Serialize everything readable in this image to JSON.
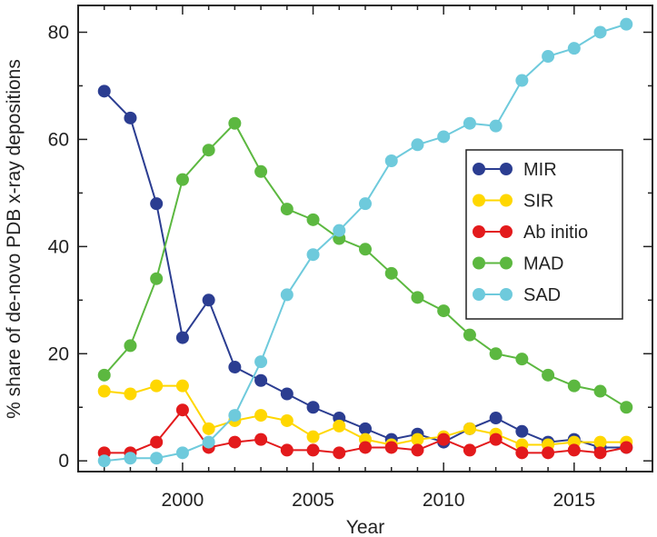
{
  "chart_data": {
    "type": "line",
    "xlabel": "Year",
    "ylabel": "% share of de-novo PDB x-ray depositions",
    "xlim": [
      1996,
      2018
    ],
    "ylim": [
      -2,
      85
    ],
    "xticks": [
      2000,
      2005,
      2010,
      2015
    ],
    "yticks": [
      0,
      20,
      40,
      60,
      80
    ],
    "legend_position": "right",
    "x": [
      1997,
      1998,
      1999,
      2000,
      2001,
      2002,
      2003,
      2004,
      2005,
      2006,
      2007,
      2008,
      2009,
      2010,
      2011,
      2012,
      2013,
      2014,
      2015,
      2016,
      2017
    ],
    "series": [
      {
        "name": "MIR",
        "color": "#2b3d91",
        "values": [
          69,
          64,
          48,
          23,
          30,
          17.5,
          15,
          12.5,
          10,
          8,
          6,
          4,
          5,
          3.5,
          6,
          8,
          5.5,
          3.5,
          4,
          2.5,
          2.5
        ]
      },
      {
        "name": "SIR",
        "color": "#ffd700",
        "values": [
          13,
          12.5,
          14,
          14,
          6,
          7.5,
          8.5,
          7.5,
          4.5,
          6.5,
          4,
          3,
          4,
          4.5,
          6,
          5,
          3,
          3,
          3.5,
          3.5,
          3.5
        ]
      },
      {
        "name": "Ab initio",
        "color": "#e31a1c",
        "values": [
          1.5,
          1.5,
          3.5,
          9.5,
          2.5,
          3.5,
          4,
          2,
          2,
          1.5,
          2.5,
          2.5,
          2,
          4,
          2,
          4,
          1.5,
          1.5,
          2,
          1.5,
          2.5
        ]
      },
      {
        "name": "MAD",
        "color": "#5cb840",
        "values": [
          16,
          21.5,
          34,
          52.5,
          58,
          63,
          54,
          47,
          45,
          41.5,
          39.5,
          35,
          30.5,
          28,
          23.5,
          20,
          19,
          16,
          14,
          13,
          10
        ]
      },
      {
        "name": "SAD",
        "color": "#6ecadc",
        "values": [
          0,
          0.5,
          0.5,
          1.5,
          3.5,
          8.5,
          18.5,
          31,
          38.5,
          43,
          48,
          56,
          59,
          60.5,
          63,
          62.5,
          71,
          75.5,
          77,
          80,
          81.5
        ]
      }
    ]
  }
}
